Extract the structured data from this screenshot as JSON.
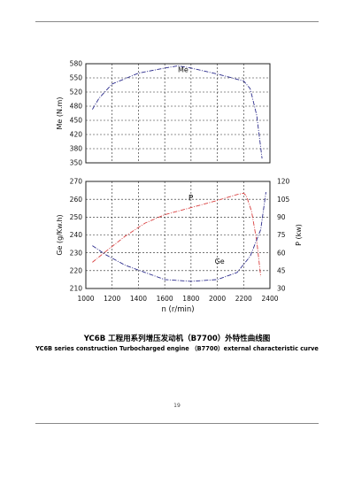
{
  "caption_cn": "YC6B 工程用系列增压发动机（B7700）外特性曲线图",
  "caption_en": "YC6B series construction Turbocharged engine （B7700）external characteristic curve",
  "page_number": "19",
  "colors": {
    "torque": "#2b2b8c",
    "power": "#d94040",
    "fuel": "#2b2b8c",
    "grid": "#222222"
  },
  "chart_data": [
    {
      "type": "line",
      "ylabel": "Me (N.m)",
      "y_ticks": [
        "580",
        "550",
        "520",
        "480",
        "450",
        "420",
        "380",
        "350"
      ],
      "ylim": [
        350,
        580
      ],
      "xlim": [
        1000,
        2400
      ],
      "grid": true,
      "series": [
        {
          "name": "Me",
          "style": "dash-dot",
          "x": [
            1050,
            1100,
            1200,
            1400,
            1600,
            1700,
            1800,
            2000,
            2200,
            2250,
            2300,
            2340
          ],
          "y": [
            474,
            500,
            533,
            558,
            570,
            575,
            570,
            556,
            540,
            522,
            460,
            360
          ]
        }
      ]
    },
    {
      "type": "line",
      "xlabel": "n (r/min)",
      "x_ticks": [
        "1000",
        "1200",
        "1400",
        "1600",
        "1800",
        "2000",
        "2200",
        "2400"
      ],
      "xlim": [
        1000,
        2400
      ],
      "ylabel": "Ge (g/Kw.h)",
      "y_ticks": [
        "270",
        "260",
        "250",
        "240",
        "230",
        "220",
        "210"
      ],
      "ylim": [
        210,
        270
      ],
      "y2label": "P (kw)",
      "y2_ticks": [
        "120",
        "105",
        "90",
        "75",
        "60",
        "45",
        "30"
      ],
      "y2lim": [
        30,
        120
      ],
      "grid": true,
      "series": [
        {
          "name": "P",
          "axis": "right",
          "style": "dash-dot",
          "x": [
            1050,
            1150,
            1300,
            1450,
            1600,
            1800,
            2000,
            2150,
            2200,
            2220,
            2260,
            2300,
            2330
          ],
          "y": [
            52,
            61,
            74,
            85,
            92,
            98,
            104,
            109,
            110,
            108,
            95,
            70,
            40
          ]
        },
        {
          "name": "Ge",
          "axis": "left",
          "style": "dash-dot",
          "x": [
            1050,
            1150,
            1300,
            1450,
            1600,
            1800,
            2000,
            2150,
            2250,
            2330,
            2370
          ],
          "y": [
            234,
            229,
            223,
            219,
            215,
            214,
            215,
            219,
            228,
            243,
            264
          ]
        }
      ]
    }
  ]
}
